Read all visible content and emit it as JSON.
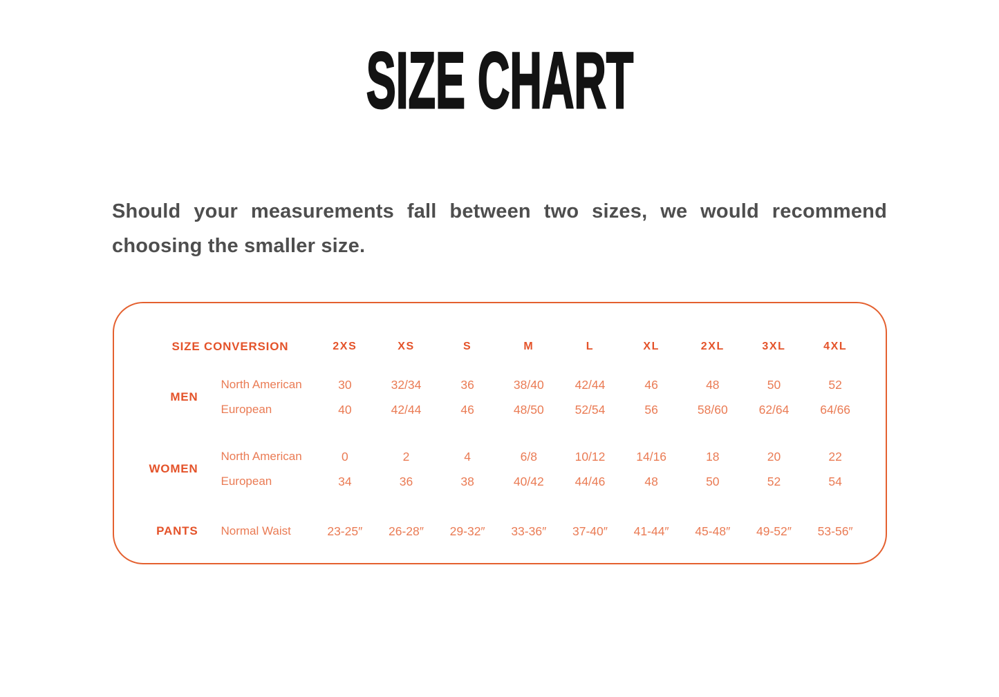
{
  "page": {
    "title": "SIZE CHART",
    "intro": "Should your measurements fall between two sizes, we would recommend choosing the smaller size."
  },
  "colors": {
    "accent_bold": "#e4532a",
    "accent_light": "#ea7b54",
    "border": "#e4602f",
    "title": "#131313",
    "body_text": "#4e4e4e"
  },
  "size_table": {
    "header_label": "SIZE CONVERSION",
    "sizes": [
      "2XS",
      "XS",
      "S",
      "M",
      "L",
      "XL",
      "2XL",
      "3XL",
      "4XL"
    ],
    "groups": [
      {
        "label": "MEN",
        "rows": [
          {
            "label": "North American",
            "values": [
              "30",
              "32/34",
              "36",
              "38/40",
              "42/44",
              "46",
              "48",
              "50",
              "52"
            ]
          },
          {
            "label": "European",
            "values": [
              "40",
              "42/44",
              "46",
              "48/50",
              "52/54",
              "56",
              "58/60",
              "62/64",
              "64/66"
            ]
          }
        ]
      },
      {
        "label": "WOMEN",
        "rows": [
          {
            "label": "North American",
            "values": [
              "0",
              "2",
              "4",
              "6/8",
              "10/12",
              "14/16",
              "18",
              "20",
              "22"
            ]
          },
          {
            "label": "European",
            "values": [
              "34",
              "36",
              "38",
              "40/42",
              "44/46",
              "48",
              "50",
              "52",
              "54"
            ]
          }
        ]
      },
      {
        "label": "PANTS",
        "rows": [
          {
            "label": "Normal Waist",
            "values": [
              "23-25″",
              "26-28″",
              "29-32″",
              "33-36″",
              "37-40″",
              "41-44″",
              "45-48″",
              "49-52″",
              "53-56″"
            ]
          }
        ]
      }
    ]
  }
}
